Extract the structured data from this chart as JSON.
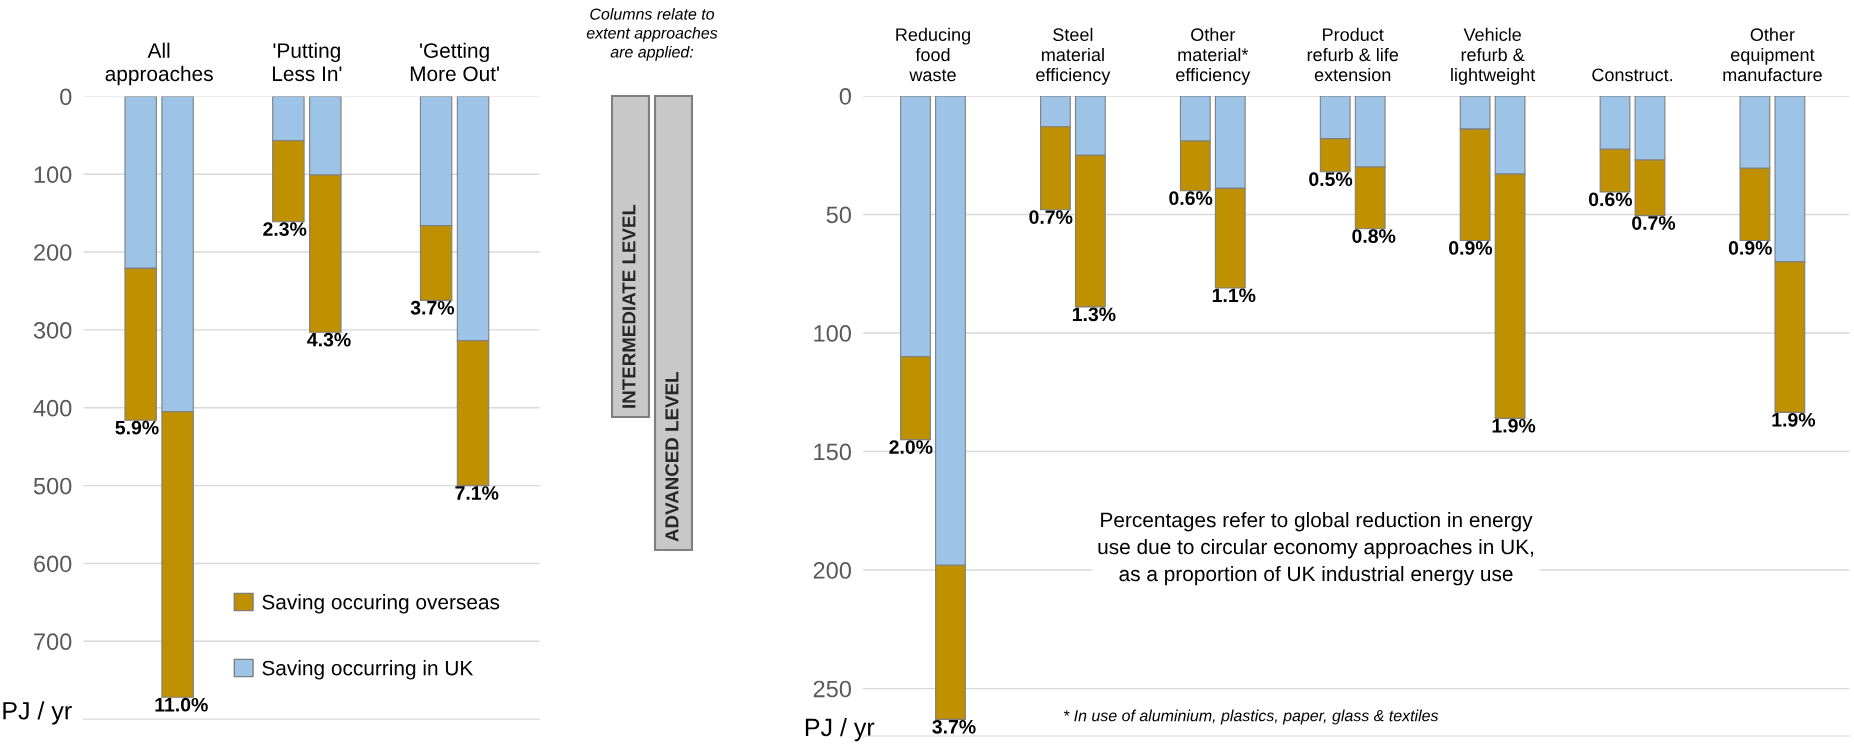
{
  "chart_data": [
    {
      "type": "bar",
      "stacked": true,
      "ylabel": "PJ / yr",
      "grid": "y",
      "legend": "bottom right",
      "categories": [
        "All\napproaches",
        null,
        null,
        null,
        "'Putting\nLess In'",
        null,
        null,
        null,
        "'Getting\nMore Out'",
        null
      ],
      "ylim": [
        800,
        0
      ],
      "yticks": [
        0,
        100,
        200,
        300,
        400,
        500,
        600,
        700
      ],
      "series": [
        {
          "name": "Saving occurring in UK",
          "color": "#9dc3e6",
          "values": [
            221,
            405,
            null,
            null,
            57,
            101,
            null,
            null,
            166,
            314
          ]
        },
        {
          "name": "Saving occuring overseas",
          "color": "#bf9000",
          "values": [
            195,
            367,
            null,
            null,
            104,
            202,
            null,
            null,
            96,
            186
          ]
        }
      ],
      "annotations": [
        "Columns relate to\nextent approaches\nare applied:",
        "INTERMEDIATE LEVEL",
        "ADVANCED LEVEL",
        {
          "text": "5.9%",
          "y": 416
        },
        {
          "text": "11.0%",
          "y": 772
        },
        {
          "text": "2.3%",
          "y": 161
        },
        {
          "text": "4.3%",
          "y": 303
        },
        {
          "text": "3.7%",
          "y": 262
        },
        {
          "text": "7.1%",
          "y": 500
        }
      ]
    },
    {
      "type": "bar",
      "stacked": true,
      "ylabel": "PJ / yr",
      "grid": "y",
      "categories": [
        "Reducing\nfood\nwaste",
        null,
        null,
        null,
        "Steel\nmaterial\nefficiency",
        null,
        null,
        null,
        "Other\nmaterial*\nefficiency",
        null,
        null,
        null,
        "Product\nrefurb & life\nextension",
        null,
        null,
        null,
        "Vehicle\nrefurb &\nlightweight",
        null,
        null,
        null,
        "Construct.",
        null,
        null,
        null,
        "Other\nequipment\nmanufacture",
        null
      ],
      "ylim": [
        270,
        0
      ],
      "yticks": [
        0,
        50,
        100,
        150,
        200,
        250
      ],
      "series": [
        {
          "color": "#9dc3e6",
          "values": [
            110,
            198,
            null,
            null,
            13,
            25,
            null,
            null,
            19,
            39,
            null,
            null,
            18,
            30,
            null,
            null,
            14,
            33,
            null,
            null,
            22.5,
            27,
            null,
            null,
            30.5,
            70
          ]
        },
        {
          "color": "#bf9000",
          "values": [
            35,
            65,
            null,
            null,
            35,
            64,
            null,
            null,
            21,
            42,
            null,
            null,
            14,
            26,
            null,
            null,
            47,
            103,
            null,
            null,
            18,
            23.5,
            null,
            null,
            30.5,
            63.5
          ]
        }
      ],
      "annotations": [
        "Percentages refer to global reduction in energy\nuse due to circular economy approaches in UK,\nas a proportion of UK industrial energy use",
        "* In use of aluminium, plastics, paper, glass & textiles",
        {
          "text": "2.0%",
          "y": 145
        },
        {
          "text": "3.7%",
          "y": 263
        },
        {
          "text": "0.7%",
          "y": 48
        },
        {
          "text": "1.3%",
          "y": 89
        },
        {
          "text": "0.6%",
          "y": 40
        },
        {
          "text": "1.1%",
          "y": 81
        },
        {
          "text": "0.5%",
          "y": 32
        },
        {
          "text": "0.8%",
          "y": 56
        },
        {
          "text": "0.9%",
          "y": 61
        },
        {
          "text": "1.9%",
          "y": 136
        },
        {
          "text": "0.6%",
          "y": 40.5
        },
        {
          "text": "0.7%",
          "y": 50.5
        },
        {
          "text": "0.9%",
          "y": 61
        },
        {
          "text": "1.9%",
          "y": 133.5
        }
      ]
    }
  ]
}
